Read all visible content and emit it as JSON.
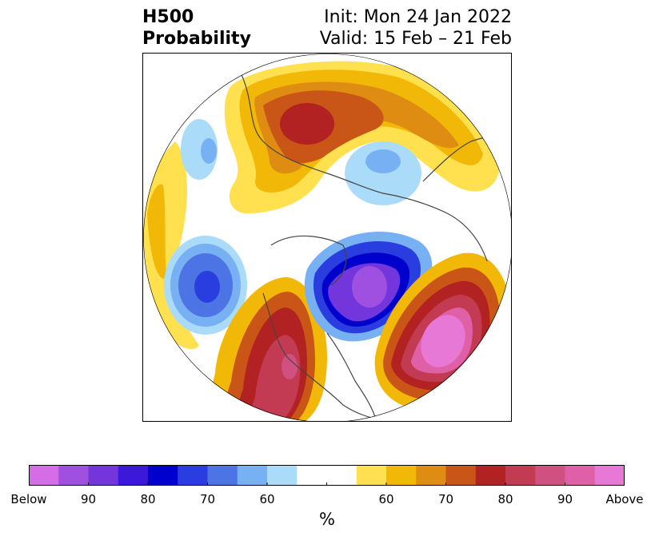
{
  "title": {
    "left_line1": "H500",
    "left_line2": "Probability",
    "right_line1": "Init: Mon 24 Jan 2022",
    "right_line2": "Valid: 15 Feb – 21 Feb"
  },
  "map": {
    "projection": "north-polar-stereographic",
    "region": "Northern Hemisphere",
    "features": [
      {
        "name": "negative-anomaly-eastern-canada",
        "sign": "below",
        "peak_pct": 90
      },
      {
        "name": "negative-anomaly-north-pacific",
        "sign": "below",
        "peak_pct": 80
      },
      {
        "name": "negative-anomaly-arctic",
        "sign": "below",
        "peak_pct": 60
      },
      {
        "name": "positive-anomaly-western-us",
        "sign": "above",
        "peak_pct": 90
      },
      {
        "name": "positive-anomaly-north-atlantic",
        "sign": "above",
        "peak_pct": 90
      },
      {
        "name": "positive-anomaly-siberia",
        "sign": "above",
        "peak_pct": 80
      }
    ]
  },
  "colorbar": {
    "units_label": "%",
    "below_colors": [
      "#d66de8",
      "#a050e0",
      "#7236dc",
      "#3c18d8",
      "#0000cc",
      "#2a3ee0",
      "#4c74e4",
      "#78b0f4",
      "#aadcfa"
    ],
    "neutral_color": "#ffffff",
    "above_colors": [
      "#ffe14f",
      "#f2b807",
      "#df8c13",
      "#c95516",
      "#b22222",
      "#c23b52",
      "#d05081",
      "#e060a8",
      "#e878d6"
    ],
    "tick_labels": [
      "Below",
      "90",
      "80",
      "70",
      "60",
      "",
      "60",
      "70",
      "80",
      "90",
      "Above"
    ]
  }
}
